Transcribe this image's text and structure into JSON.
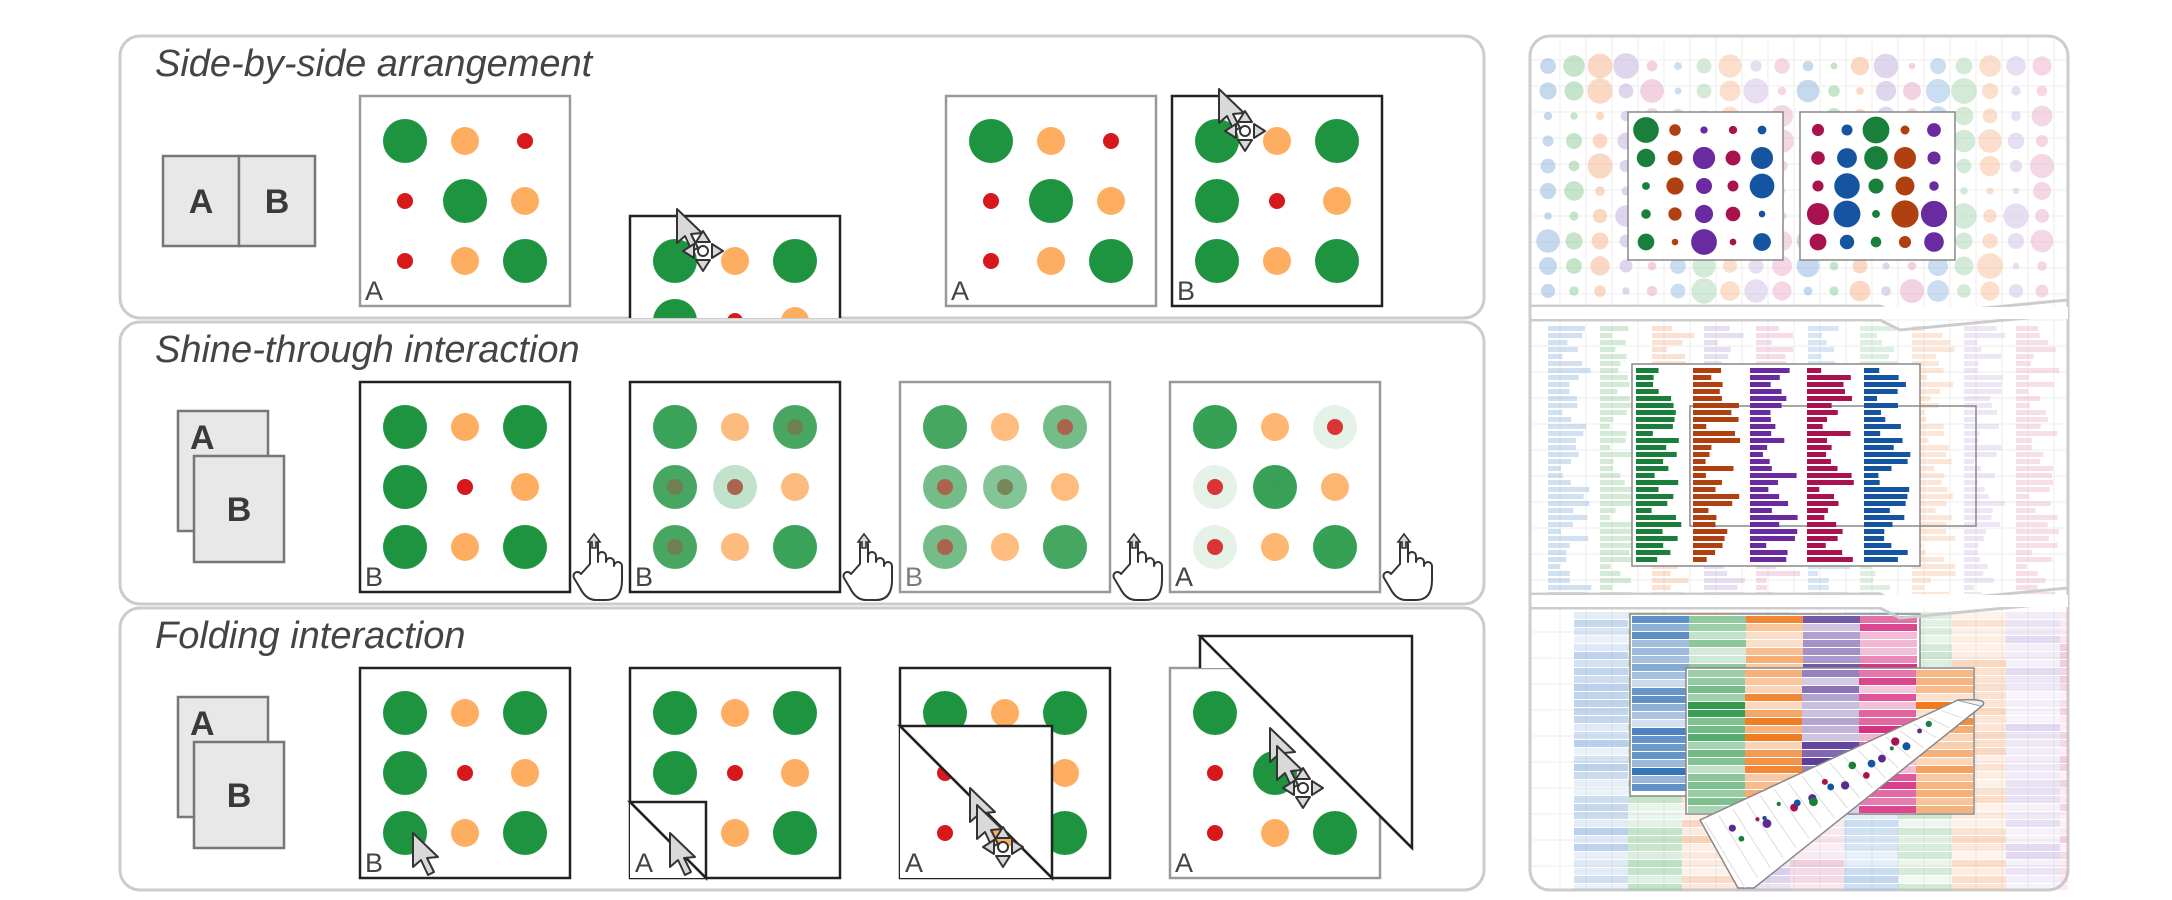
{
  "rows": {
    "side_by_side": {
      "title": "Side-by-side arrangement",
      "icon_a": "A",
      "icon_b": "B",
      "label_a": "A",
      "label_b": "B"
    },
    "shine_through": {
      "title": "Shine-through interaction",
      "icon_a": "A",
      "icon_b": "B",
      "labels": [
        "B",
        "B",
        "B",
        "A"
      ]
    },
    "folding": {
      "title": "Folding interaction",
      "icon_a": "A",
      "icon_b": "B",
      "labels": [
        "B",
        "A",
        "A",
        "A"
      ]
    }
  },
  "colors": {
    "green": "#1e9440",
    "orange": "#fdae61",
    "red": "#d7191c",
    "panel_border": "#cccccc",
    "icon_fill": "#e8e8e8"
  },
  "icons": [
    "move-cursor-icon",
    "hand-pointer-icon"
  ]
}
